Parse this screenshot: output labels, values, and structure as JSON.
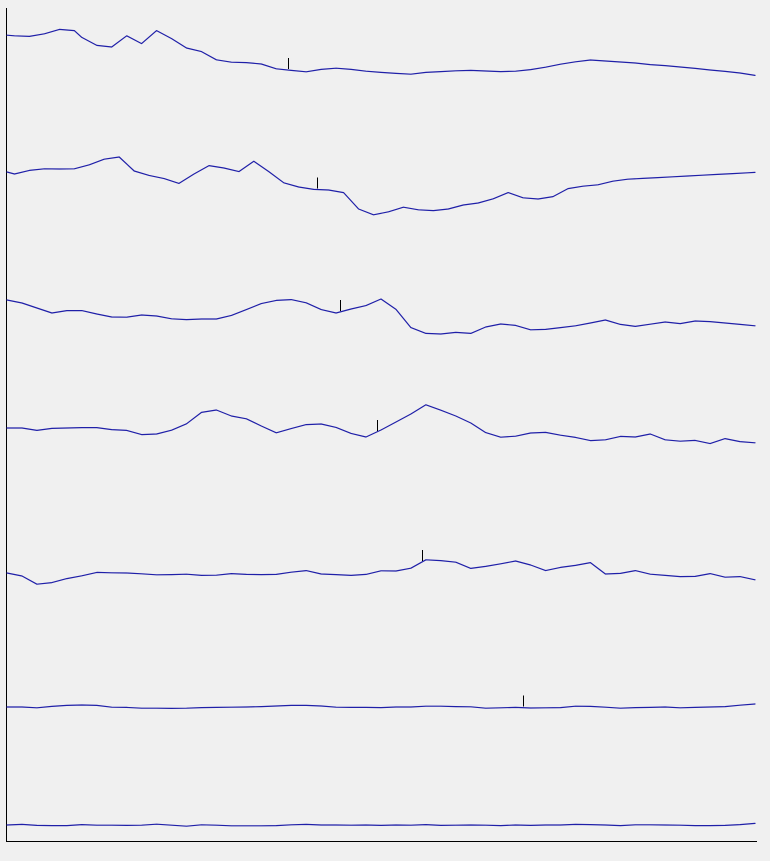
{
  "chart_data": {
    "type": "line",
    "title": "",
    "xlabel": "",
    "ylabel": "",
    "grid": false,
    "legend": "none",
    "line_color": "#1f1fa8",
    "marker_color": "#000000",
    "x_range": [
      0,
      100
    ],
    "trace_y_range": [
      0,
      10
    ],
    "series": [
      {
        "x": [
          0,
          1,
          3,
          5,
          7,
          9,
          10,
          12,
          14,
          16,
          18,
          20,
          22,
          24,
          26,
          28,
          30,
          32,
          34,
          36,
          38,
          40,
          42,
          44,
          46,
          48,
          50,
          52,
          54,
          56,
          58,
          60,
          62,
          64,
          66,
          68,
          70,
          72,
          74,
          76,
          78,
          80,
          82,
          84,
          86,
          88,
          90,
          92,
          94,
          96,
          98,
          100
        ],
        "y": [
          3.9,
          3.6,
          3.3,
          4.6,
          6.8,
          6.2,
          2.8,
          -1.2,
          -2.0,
          3.6,
          -0.3,
          6.2,
          2.2,
          -2.5,
          -4.3,
          -8.4,
          -9.6,
          -9.8,
          -10.5,
          -12.9,
          -13.7,
          -14.4,
          -13.2,
          -12.6,
          -13.2,
          -14.1,
          -14.7,
          -15.2,
          -15.6,
          -14.7,
          -14.3,
          -13.9,
          -13.7,
          -14.0,
          -14.3,
          -14.1,
          -13.3,
          -12.1,
          -10.6,
          -9.4,
          -8.5,
          -9.0,
          -9.5,
          -10.0,
          -10.8,
          -11.3,
          -12.0,
          -12.7,
          -13.5,
          -14.2,
          -15.0,
          -16.2
        ],
        "marker_x": 37.5
      },
      {
        "x": [
          0,
          1,
          3,
          5,
          7,
          9,
          11,
          13,
          15,
          17,
          19,
          21,
          23,
          25,
          27,
          29,
          31,
          33,
          35,
          37,
          39,
          41,
          43,
          45,
          47,
          49,
          51,
          53,
          55,
          57,
          59,
          61,
          63,
          65,
          67,
          69,
          71,
          73,
          75,
          77,
          79,
          81,
          83,
          85,
          87,
          89,
          91,
          93,
          95,
          97,
          99,
          100
        ],
        "y": [
          0,
          -1.0,
          0.8,
          1.6,
          1.5,
          1.6,
          3.6,
          6.4,
          7.5,
          0.5,
          -1.7,
          -3.3,
          -5.7,
          -1.0,
          3.2,
          2.0,
          0.2,
          5.4,
          0.2,
          -5.4,
          -7.5,
          -8.7,
          -9.0,
          -10.3,
          -18.5,
          -21.4,
          -19.9,
          -17.6,
          -18.9,
          -19.3,
          -18.5,
          -16.5,
          -15.5,
          -13.4,
          -10.3,
          -12.9,
          -13.5,
          -12.3,
          -8.3,
          -7.1,
          -6.4,
          -4.6,
          -3.6,
          -3.2,
          -2.8,
          -2.4,
          -2.0,
          -1.6,
          -1.2,
          -0.8,
          -0.4,
          -0.2
        ],
        "marker_x": 41.5
      },
      {
        "x": [
          0,
          2,
          4,
          6,
          8,
          10,
          12,
          14,
          16,
          18,
          20,
          22,
          24,
          26,
          28,
          30,
          32,
          34,
          36,
          38,
          40,
          42,
          44,
          46,
          48,
          50,
          52,
          54,
          56,
          58,
          60,
          62,
          64,
          66,
          68,
          70,
          72,
          74,
          76,
          78,
          80,
          82,
          84,
          86,
          88,
          90,
          92,
          94,
          96,
          98,
          100
        ],
        "y": [
          0,
          -1.5,
          -4.0,
          -6.5,
          -5.3,
          -5.3,
          -7.0,
          -8.5,
          -8.6,
          -7.5,
          -8.0,
          -9.4,
          -9.8,
          -9.5,
          -9.5,
          -7.7,
          -4.8,
          -1.8,
          -0.2,
          0.2,
          -1.4,
          -4.8,
          -6.5,
          -4.5,
          -2.8,
          0.5,
          -4.7,
          -13.8,
          -16.7,
          -17.0,
          -16.2,
          -16.7,
          -13.5,
          -12.0,
          -12.7,
          -14.9,
          -14.7,
          -13.8,
          -12.9,
          -11.5,
          -10.0,
          -12.2,
          -13.2,
          -12.1,
          -11.0,
          -11.8,
          -10.5,
          -10.8,
          -11.5,
          -12.2,
          -12.9
        ],
        "marker_x": 44.5
      },
      {
        "x": [
          0,
          2,
          4,
          6,
          8,
          10,
          12,
          14,
          16,
          18,
          20,
          22,
          24,
          26,
          28,
          30,
          32,
          34,
          36,
          38,
          40,
          42,
          44,
          46,
          48,
          50,
          52,
          54,
          56,
          58,
          60,
          62,
          64,
          66,
          68,
          70,
          72,
          74,
          76,
          78,
          80,
          82,
          84,
          86,
          88,
          90,
          92,
          94,
          96,
          98,
          100
        ],
        "y": [
          0,
          0,
          -1.2,
          -0.2,
          0,
          0.2,
          0.2,
          -0.8,
          -1.2,
          -3.3,
          -3.0,
          -1.1,
          2.1,
          7.8,
          9.0,
          6.0,
          4.6,
          1.0,
          -2.4,
          -0.3,
          1.7,
          2.0,
          0.3,
          -2.7,
          -4.5,
          -1.0,
          3.0,
          7.0,
          11.6,
          8.9,
          6.0,
          2.5,
          -2.3,
          -4.6,
          -4.1,
          -2.5,
          -2.2,
          -3.6,
          -4.7,
          -6.3,
          -5.9,
          -4.2,
          -4.5,
          -3.0,
          -5.9,
          -6.6,
          -6.2,
          -7.8,
          -5.3,
          -6.8,
          -7.4
        ],
        "marker_x": 49.5
      },
      {
        "x": [
          0,
          2,
          4,
          6,
          8,
          10,
          12,
          14,
          16,
          18,
          20,
          22,
          24,
          26,
          28,
          30,
          32,
          34,
          36,
          38,
          40,
          42,
          44,
          46,
          48,
          50,
          52,
          54,
          56,
          58,
          60,
          62,
          64,
          66,
          68,
          70,
          72,
          74,
          76,
          78,
          80,
          82,
          84,
          86,
          88,
          90,
          92,
          94,
          96,
          98,
          100
        ],
        "y": [
          0,
          -1.5,
          -5.6,
          -4.8,
          -2.8,
          -1.4,
          0.3,
          0.1,
          0.0,
          -0.4,
          -0.9,
          -0.8,
          -0.6,
          -1.2,
          -1.1,
          -0.3,
          -0.7,
          -0.8,
          -0.7,
          0.4,
          1.2,
          -0.5,
          -0.8,
          -1.2,
          -0.7,
          1.1,
          1.0,
          2.4,
          6.6,
          6.2,
          5.4,
          2.3,
          3.3,
          4.6,
          6.0,
          4.0,
          1.2,
          2.8,
          3.8,
          5.2,
          -0.5,
          -0.2,
          1.2,
          -0.6,
          -1.2,
          -1.8,
          -1.7,
          -0.3,
          -2.1,
          -1.8,
          -3.4
        ],
        "marker_x": 55.5
      },
      {
        "x": [
          0,
          2,
          4,
          6,
          8,
          10,
          12,
          14,
          16,
          18,
          20,
          22,
          24,
          26,
          28,
          30,
          32,
          34,
          36,
          38,
          40,
          42,
          44,
          46,
          48,
          50,
          52,
          54,
          56,
          58,
          60,
          62,
          64,
          66,
          68,
          70,
          72,
          74,
          76,
          78,
          80,
          82,
          84,
          86,
          88,
          90,
          92,
          94,
          96,
          98,
          100
        ],
        "y": [
          0,
          0,
          -0.4,
          0.3,
          0.8,
          1.0,
          0.8,
          -0.1,
          -0.2,
          -0.6,
          -0.6,
          -0.7,
          -0.6,
          -0.3,
          -0.2,
          -0.1,
          0,
          0.2,
          0.5,
          0.8,
          0.8,
          0.5,
          -0.1,
          -0.2,
          -0.2,
          -0.3,
          0,
          0,
          0.4,
          0.4,
          0.2,
          0.1,
          -0.6,
          -0.4,
          -0.2,
          -0.5,
          -0.4,
          -0.3,
          0.4,
          0.3,
          -0.1,
          -0.6,
          -0.3,
          -0.2,
          0,
          -0.4,
          -0.2,
          0,
          0.2,
          0.9,
          1.5
        ],
        "marker_x": 69.0
      },
      {
        "x": [
          0,
          2,
          4,
          6,
          8,
          10,
          12,
          14,
          16,
          18,
          20,
          22,
          24,
          26,
          28,
          30,
          32,
          34,
          36,
          38,
          40,
          42,
          44,
          46,
          48,
          50,
          52,
          54,
          56,
          58,
          60,
          62,
          64,
          66,
          68,
          70,
          72,
          74,
          76,
          78,
          80,
          82,
          84,
          86,
          88,
          90,
          92,
          94,
          96,
          98,
          100
        ],
        "y": [
          0,
          0.3,
          -0.2,
          -0.3,
          -0.3,
          0.2,
          -0.1,
          -0.1,
          -0.2,
          -0.1,
          0.4,
          -0.1,
          -0.6,
          0.1,
          -0.1,
          -0.4,
          -0.4,
          -0.4,
          -0.3,
          0.1,
          0.3,
          0,
          0,
          -0.1,
          0,
          -0.2,
          0,
          -0.1,
          0.2,
          -0.2,
          -0.1,
          0,
          -0.1,
          -0.3,
          0,
          -0.2,
          0,
          0,
          0.3,
          0.2,
          0,
          -0.3,
          0.1,
          0.1,
          0,
          -0.1,
          -0.3,
          -0.3,
          -0.2,
          0.2,
          0.8
        ],
        "marker_x": null
      }
    ]
  }
}
